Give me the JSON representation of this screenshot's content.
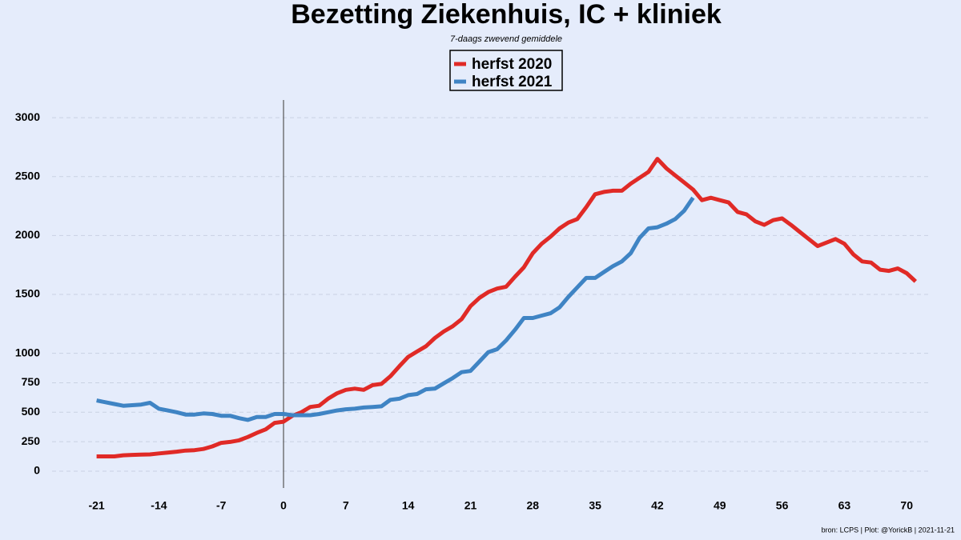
{
  "chart_data": {
    "type": "line",
    "title": "Bezetting Ziekenhuis, IC + kliniek",
    "subtitle": "7-daags zwevend gemiddele",
    "footer": "bron: LCPS  | Plot: @YorickB |  2021-11-21",
    "x": [
      -21,
      -20,
      -19,
      -18,
      -17,
      -16,
      -15,
      -14,
      -13,
      -12,
      -11,
      -10,
      -9,
      -8,
      -7,
      -6,
      -5,
      -4,
      -3,
      -2,
      -1,
      0,
      1,
      2,
      3,
      4,
      5,
      6,
      7,
      8,
      9,
      10,
      11,
      12,
      13,
      14,
      15,
      16,
      17,
      18,
      19,
      20,
      21,
      22,
      23,
      24,
      25,
      26,
      27,
      28,
      29,
      30,
      31,
      32,
      33,
      34,
      35,
      36,
      37,
      38,
      39,
      40,
      41,
      42,
      43,
      44,
      45,
      46,
      47,
      48,
      49,
      50,
      51,
      52,
      53,
      54,
      55,
      56,
      57,
      58,
      59,
      60,
      61,
      62,
      63,
      64,
      65,
      66,
      67,
      68,
      69,
      70,
      71
    ],
    "series": [
      {
        "name": "herfst 2020",
        "color": "#e02a26",
        "values": [
          125,
          125,
          125,
          135,
          138,
          140,
          142,
          150,
          158,
          165,
          175,
          178,
          188,
          210,
          240,
          248,
          262,
          290,
          325,
          355,
          410,
          420,
          470,
          500,
          545,
          555,
          615,
          660,
          690,
          700,
          690,
          730,
          740,
          805,
          890,
          970,
          1015,
          1060,
          1130,
          1185,
          1230,
          1290,
          1400,
          1470,
          1520,
          1550,
          1565,
          1650,
          1730,
          1850,
          1930,
          1990,
          2060,
          2110,
          2140,
          2240,
          2350,
          2370,
          2380,
          2380,
          2440,
          2490,
          2540,
          2650,
          2570,
          2510,
          2450,
          2390,
          2300,
          2320,
          2300,
          2280,
          2200,
          2180,
          2120,
          2090,
          2130,
          2145,
          2090,
          2030,
          1970,
          1910,
          1940,
          1970,
          1930,
          1840,
          1780,
          1770,
          1710,
          1700,
          1720,
          1680,
          1610
        ]
      },
      {
        "name": "herfst 2021",
        "color": "#3f84c4",
        "values": [
          600,
          585,
          570,
          555,
          560,
          565,
          580,
          530,
          515,
          500,
          480,
          480,
          490,
          485,
          470,
          470,
          450,
          435,
          460,
          460,
          485,
          485,
          475,
          475,
          475,
          485,
          500,
          515,
          525,
          530,
          540,
          545,
          550,
          605,
          615,
          645,
          655,
          695,
          700,
          745,
          790,
          840,
          850,
          930,
          1010,
          1035,
          1110,
          1200,
          1300,
          1300,
          1320,
          1340,
          1390,
          1480,
          1560,
          1640,
          1640,
          1690,
          1740,
          1780,
          1850,
          1980,
          2060,
          2070,
          2100,
          2140,
          2210,
          2320,
          null,
          null,
          null,
          null,
          null,
          null,
          null,
          null,
          null,
          null,
          null,
          null,
          null,
          null,
          null,
          null,
          null,
          null,
          null,
          null,
          null,
          null,
          null,
          null,
          null
        ]
      }
    ],
    "xlim": [
      -26,
      72.5
    ],
    "ylim": [
      -143,
      3150
    ],
    "xticks": [
      -21,
      -14,
      -7,
      0,
      7,
      14,
      21,
      28,
      35,
      42,
      49,
      56,
      63,
      70
    ],
    "yticks": [
      0,
      250,
      500,
      750,
      1000,
      1500,
      2000,
      2500,
      3000
    ],
    "vline": 0,
    "grid": true,
    "legend": "top"
  }
}
